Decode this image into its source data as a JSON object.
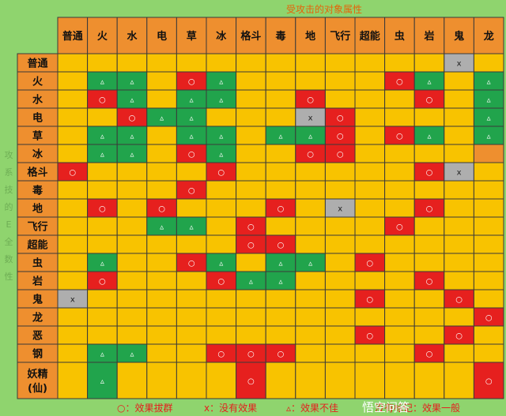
{
  "title": "受攻击的对象属性",
  "side_label_fragments": [
    "攻",
    "系",
    "技",
    "的",
    "E",
    "全",
    "数",
    "性"
  ],
  "columns": [
    "普通",
    "火",
    "水",
    "电",
    "草",
    "冰",
    "格斗",
    "毒",
    "地",
    "飞行",
    "超能",
    "虫",
    "岩",
    "鬼",
    "龙"
  ],
  "rows": [
    "普通",
    "火",
    "水",
    "电",
    "草",
    "冰",
    "格斗",
    "毒",
    "地",
    "飞行",
    "超能",
    "虫",
    "岩",
    "鬼",
    "龙",
    "恶",
    "钢",
    "妖精\n(仙)"
  ],
  "symbols": {
    "2": "○",
    "0": "x",
    "h": "▵"
  },
  "colors": {
    "y": "#f8c300",
    "g": "#21a44c",
    "r": "#e6201e",
    "x": "#aeaeae",
    "o": "#ee8f2f",
    "header": "#ee8f2f",
    "title": "#e5640a"
  },
  "cells": [
    "yyyyyyyyyyyyhxy",
    "yggyrgyyyyyrgyg",
    "yrgyggyyryyyryg",
    "yyrggyyyxryyyyg",
    "yggyggyggryrgyg",
    "yggyrgyyrryyyyo",
    "ryyyyryhyhhhrxy",
    "yyyyryyhhyyyhhy",
    "yryryyyryxyhryy",
    "yyyggyryyyyryyy",
    "yyyyyyrryyhyyyy",
    "ygyyrgyggyryyhy",
    "yryyyrggyyyyryy",
    "xyyyyyyyyyryyrh",
    "yyyyyyyyyyyyyyr",
    "yyyyyyhyyyryyrh",
    "yggyyrrryyyyryh",
    "ygyyyyrhyyyyyyr"
  ],
  "legend": [
    {
      "symbol": "○",
      "text": "效果拔群"
    },
    {
      "symbol": "x",
      "text": "没有效果"
    },
    {
      "symbol": "▵",
      "text": "效果不佳"
    },
    {
      "symbol": "",
      "text": "没有标记：效果一般"
    }
  ],
  "watermark": "悟空问答"
}
